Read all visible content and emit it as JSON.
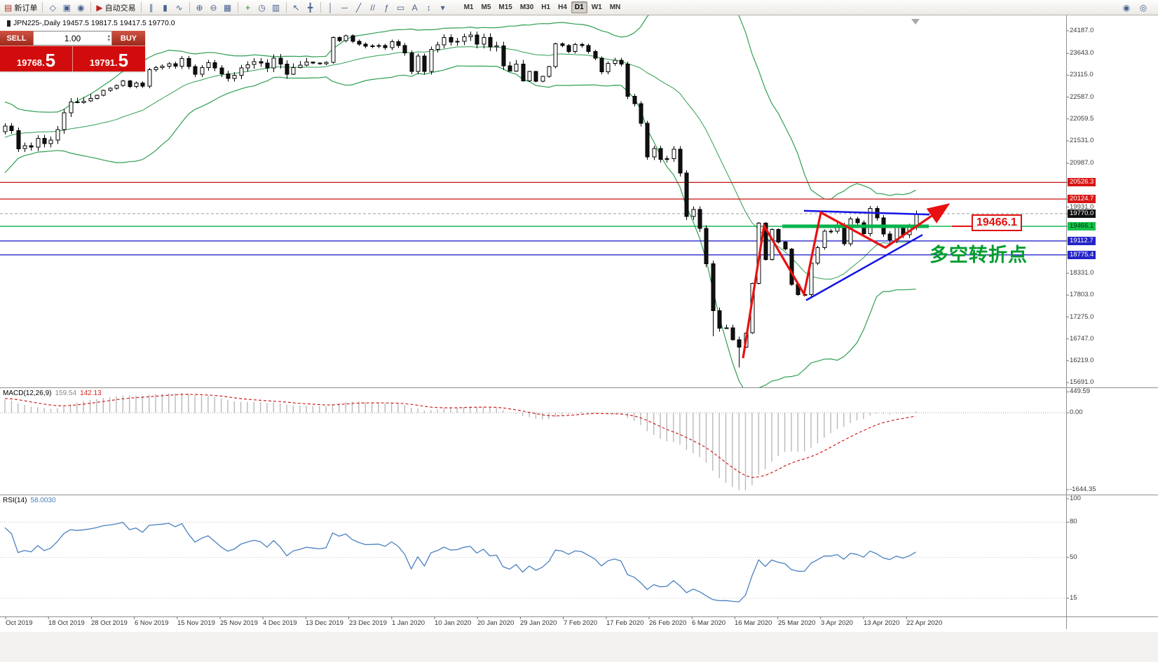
{
  "toolbar": {
    "left_items": [
      {
        "type": "button",
        "name": "new-order-button",
        "glyph": "▤",
        "glyph_color": "#b03020",
        "label": "新订单"
      },
      {
        "type": "sep"
      },
      {
        "type": "icon",
        "name": "metaquotes-icon",
        "glyph": "◇"
      },
      {
        "type": "icon",
        "name": "data-window-icon",
        "glyph": "▣"
      },
      {
        "type": "icon",
        "name": "market-watch-icon",
        "glyph": "◉"
      },
      {
        "type": "sep"
      },
      {
        "type": "button",
        "name": "autotrading-button",
        "glyph": "▶",
        "glyph_color": "#c02020",
        "label": "自动交易"
      },
      {
        "type": "sep"
      },
      {
        "type": "icon",
        "name": "bar-chart-icon",
        "glyph": "∥"
      },
      {
        "type": "icon",
        "name": "candlestick-chart-icon",
        "glyph": "▮"
      },
      {
        "type": "icon",
        "name": "line-chart-icon",
        "glyph": "∿"
      },
      {
        "type": "sep"
      },
      {
        "type": "icon",
        "name": "zoom-in-icon",
        "glyph": "⊕"
      },
      {
        "type": "icon",
        "name": "zoom-out-icon",
        "glyph": "⊖"
      },
      {
        "type": "icon",
        "name": "tile-windows-icon",
        "glyph": "▦"
      },
      {
        "type": "sep"
      },
      {
        "type": "icon",
        "name": "indicators-icon",
        "glyph": "+",
        "glyph_color": "#1a8a1a"
      },
      {
        "type": "icon",
        "name": "periods-icon",
        "glyph": "◷"
      },
      {
        "type": "icon",
        "name": "templates-icon",
        "glyph": "▥"
      },
      {
        "type": "sep"
      },
      {
        "type": "icon",
        "name": "cursor-icon",
        "glyph": "↖"
      },
      {
        "type": "icon",
        "name": "crosshair-icon",
        "glyph": "╋"
      },
      {
        "type": "sep"
      },
      {
        "type": "icon",
        "name": "vertical-line-icon",
        "glyph": "│"
      },
      {
        "type": "icon",
        "name": "horizontal-line-icon",
        "glyph": "─"
      },
      {
        "type": "icon",
        "name": "trendline-icon",
        "glyph": "╱"
      },
      {
        "type": "icon",
        "name": "channel-icon",
        "glyph": "//"
      },
      {
        "type": "icon",
        "name": "fibonacci-icon",
        "glyph": "ƒ"
      },
      {
        "type": "icon",
        "name": "shapes-icon",
        "glyph": "▭"
      },
      {
        "type": "icon",
        "name": "text-label-icon",
        "glyph": "A"
      },
      {
        "type": "icon",
        "name": "arrows-icon",
        "glyph": "↕"
      },
      {
        "type": "icon",
        "name": "more-tools-icon",
        "glyph": "▾"
      }
    ],
    "timeframes": [
      {
        "label": "M1"
      },
      {
        "label": "M5"
      },
      {
        "label": "M15"
      },
      {
        "label": "M30"
      },
      {
        "label": "H1"
      },
      {
        "label": "H4"
      },
      {
        "label": "D1",
        "active": true
      },
      {
        "label": "W1"
      },
      {
        "label": "MN"
      }
    ],
    "right_items": [
      {
        "name": "help-icon",
        "glyph": "◉"
      },
      {
        "name": "community-icon",
        "glyph": "◎"
      }
    ]
  },
  "chart": {
    "symbol_info": "JPN225-,Daily 19457.5 19817.5 19417.5 19770.0",
    "trade_panel": {
      "sell_label": "SELL",
      "buy_label": "BUY",
      "volume": "1.00",
      "sell_price": {
        "main": "19768.",
        "pip": "5"
      },
      "buy_price": {
        "main": "19791.",
        "pip": "5"
      }
    },
    "annotations": {
      "price_label": "19466.1",
      "turning_point": "多空转折点"
    },
    "colors": {
      "band": "#2f9e52",
      "arrow": "#e81010",
      "trend": "#1414e6",
      "green_level": "#00b44c",
      "bull": "#ffffff",
      "bear": "#111111",
      "macd_bar": "#b9b9b9",
      "macd_signal": "#cc2020",
      "rsi_line": "#4a80c0"
    },
    "price_axis": {
      "ticks": [
        {
          "label": "24187.0",
          "price": 24187.0,
          "style": "normal"
        },
        {
          "label": "23643.0",
          "price": 23643.0,
          "style": "normal"
        },
        {
          "label": "23115.0",
          "price": 23115.0,
          "style": "normal"
        },
        {
          "label": "22587.0",
          "price": 22587.0,
          "style": "normal"
        },
        {
          "label": "22059.5",
          "price": 22059.5,
          "style": "normal"
        },
        {
          "label": "21531.0",
          "price": 21531.0,
          "style": "normal"
        },
        {
          "label": "20987.0",
          "price": 20987.0,
          "style": "normal"
        },
        {
          "label": "20526.3",
          "price": 20526.3,
          "style": "red"
        },
        {
          "label": "20124.7",
          "price": 20124.7,
          "style": "red"
        },
        {
          "label": "19931.0",
          "price": 19931.0,
          "style": "normal"
        },
        {
          "label": "19770.0",
          "price": 19770.0,
          "style": "black"
        },
        {
          "label": "19466.1",
          "price": 19466.1,
          "style": "green"
        },
        {
          "label": "19112.7",
          "price": 19112.7,
          "style": "blue"
        },
        {
          "label": "18775.4",
          "price": 18775.4,
          "style": "blue"
        },
        {
          "label": "18331.0",
          "price": 18331.0,
          "style": "normal"
        },
        {
          "label": "17803.0",
          "price": 17803.0,
          "style": "normal"
        },
        {
          "label": "17275.0",
          "price": 17275.0,
          "style": "normal"
        },
        {
          "label": "16747.0",
          "price": 16747.0,
          "style": "normal"
        },
        {
          "label": "16219.0",
          "price": 16219.0,
          "style": "normal"
        },
        {
          "label": "15691.0",
          "price": 15691.0,
          "style": "normal"
        }
      ]
    },
    "levels": [
      {
        "price": 20526.3,
        "color": "#cc1111",
        "width": 1.2
      },
      {
        "price": 20124.7,
        "color": "#cc1111",
        "width": 1.2
      },
      {
        "price": 19770.0,
        "color": "#9a9a9a",
        "width": 1,
        "dash": "4 3"
      },
      {
        "price": 19466.1,
        "color": "#00b44c",
        "width": 1.4
      },
      {
        "price": 19112.7,
        "color": "#2828cc",
        "width": 1.4
      },
      {
        "price": 18775.4,
        "color": "#2828cc",
        "width": 1.4
      }
    ],
    "drawings": {
      "red_arrow": [
        [
          1060,
          16280
        ],
        [
          1090,
          19480
        ],
        [
          1147,
          17830
        ],
        [
          1171,
          19800
        ],
        [
          1263,
          18950
        ],
        [
          1350,
          19960
        ]
      ],
      "blue_support": [
        [
          1150,
          17680
        ],
        [
          1316,
          19260
        ]
      ],
      "blue_resistance": [
        [
          1147,
          19840
        ],
        [
          1326,
          19750
        ]
      ],
      "green_segment": [
        [
          1116,
          19466.1
        ],
        [
          1325,
          19466.1
        ]
      ],
      "callout_tick": [
        [
          1358,
          19466.1
        ],
        [
          1386,
          19466.1
        ]
      ]
    },
    "dates": [
      "Oct 2019",
      "18 Oct 2019",
      "28 Oct 2019",
      "6 Nov 2019",
      "15 Nov 2019",
      "25 Nov 2019",
      "4 Dec 2019",
      "13 Dec 2019",
      "23 Dec 2019",
      "1 Jan 2020",
      "10 Jan 2020",
      "20 Jan 2020",
      "29 Jan 2020",
      "7 Feb 2020",
      "17 Feb 2020",
      "26 Feb 2020",
      "6 Mar 2020",
      "16 Mar 2020",
      "25 Mar 2020",
      "3 Apr 2020",
      "13 Apr 2020",
      "22 Apr 2020"
    ],
    "pre_closes": [
      20620,
      20680,
      20650,
      21085,
      21200,
      21310,
      21400,
      21460,
      21600,
      21710,
      21800,
      21955,
      22000,
      22020,
      21955,
      22000,
      22100,
      22020,
      21710,
      21755
    ],
    "closes": [
      21890,
      21780,
      21340,
      21410,
      21375,
      21590,
      21460,
      21550,
      21800,
      22210,
      22470,
      22450,
      22490,
      22550,
      22630,
      22750,
      22800,
      22870,
      22975,
      22840,
      22930,
      22850,
      23250,
      23300,
      23330,
      23390,
      23330,
      23520,
      23320,
      23140,
      23300,
      23420,
      23290,
      23150,
      23040,
      23110,
      23290,
      23370,
      23440,
      23410,
      23290,
      23530,
      23380,
      23135,
      23300,
      23355,
      23430,
      23410,
      23390,
      23425,
      24025,
      23950,
      24065,
      23935,
      23865,
      23815,
      23820,
      23830,
      23785,
      23925,
      23835,
      23655,
      23205,
      23575,
      23205,
      23740,
      23850,
      24025,
      23915,
      23935,
      24040,
      24085,
      23865,
      24030,
      23795,
      23825,
      23345,
      23215,
      23380,
      22980,
      23205,
      22970,
      23085,
      23320,
      23875,
      23830,
      23685,
      23860,
      23830,
      23685,
      23525,
      23195,
      23400,
      23480,
      23385,
      22605,
      22425,
      21950,
      21140,
      21345,
      21080,
      21100,
      21330,
      20750,
      19700,
      19870,
      19415,
      18560,
      17430,
      17000,
      17010,
      16725,
      16550,
      16890,
      18090,
      19545,
      18665,
      19390,
      19085,
      18915,
      18065,
      17820,
      17820,
      18575,
      18950,
      19350,
      19345,
      19500,
      19045,
      19640,
      19550,
      19290,
      19895,
      19670,
      19280,
      19135,
      19430,
      19260,
      19455,
      19770
    ],
    "low_overrides": [
      [
        108,
        16810
      ],
      [
        112,
        16060
      ]
    ]
  },
  "macd": {
    "label": "MACD(12,26,9)",
    "value1": "159.54",
    "value2": "142.13",
    "fast": 12,
    "slow": 26,
    "signal": 9,
    "axis": [
      {
        "label": "449.59",
        "v": 449.59
      },
      {
        "label": "0.00",
        "v": 0
      },
      {
        "label": "-1644.35",
        "v": -1644.35
      }
    ]
  },
  "rsi": {
    "label": "RSI(14)",
    "value": "58.0030",
    "period": 14,
    "levels": [
      80,
      50,
      15
    ],
    "axis": [
      {
        "label": "100",
        "v": 100
      },
      {
        "label": "80",
        "v": 80
      },
      {
        "label": "50",
        "v": 50
      },
      {
        "label": "15",
        "v": 15
      }
    ]
  }
}
